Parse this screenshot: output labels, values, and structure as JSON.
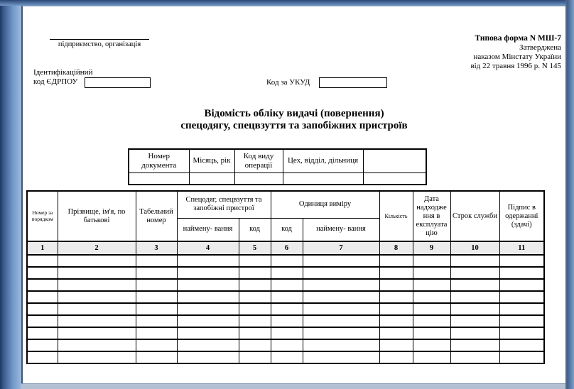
{
  "frame": {
    "accent_blue": "#5d84b6",
    "bottom_strip": "#b3c0d4",
    "number_row_shade": "#ececec"
  },
  "letterhead": {
    "org_label": "підприємство, організація"
  },
  "approval": {
    "line1": "Типова форма N МШ-7",
    "line2": "Затверджена",
    "line3": "наказом Мінстату України",
    "line4": "від 22 травня 1996 р. N 145"
  },
  "codes": {
    "edrpou_label_line1": "Ідентифікаційний",
    "edrpou_label_line2": "код ЄДРПОУ",
    "edrpou_value": "",
    "ukud_label": "Код за УКУД",
    "ukud_value": ""
  },
  "title": {
    "line1": "Відомість обліку видачі (повернення)",
    "line2": "спецодягу, спецвзуття та запобіжних пристроїв"
  },
  "doc_info_table": {
    "headers": [
      "Номер документа",
      "Місяць, рік",
      "Код виду операції",
      "Цех, відділ, дільниця",
      ""
    ],
    "values": [
      "",
      "",
      "",
      "",
      ""
    ]
  },
  "main_table": {
    "columns": {
      "c1": "Номер за порядком",
      "c2": "Прізвище, ім'я, по батькові",
      "c3": "Табельний номер",
      "group_workwear": "Спецодяг, спецвзуття та запобіжні пристрої",
      "c4": "наймену- вання",
      "c5": "код",
      "group_unit": "Одиниця виміру",
      "c6": "код",
      "c7": "наймену- вання",
      "c8": "Кількість",
      "c9": "Дата надходження в експлуатацію",
      "c10": "Строк служби",
      "c11": "Підпис в одержанні (здачі)"
    },
    "column_numbers": [
      "1",
      "2",
      "3",
      "4",
      "5",
      "6",
      "7",
      "8",
      "9",
      "10",
      "11"
    ],
    "empty_rows": 9
  }
}
